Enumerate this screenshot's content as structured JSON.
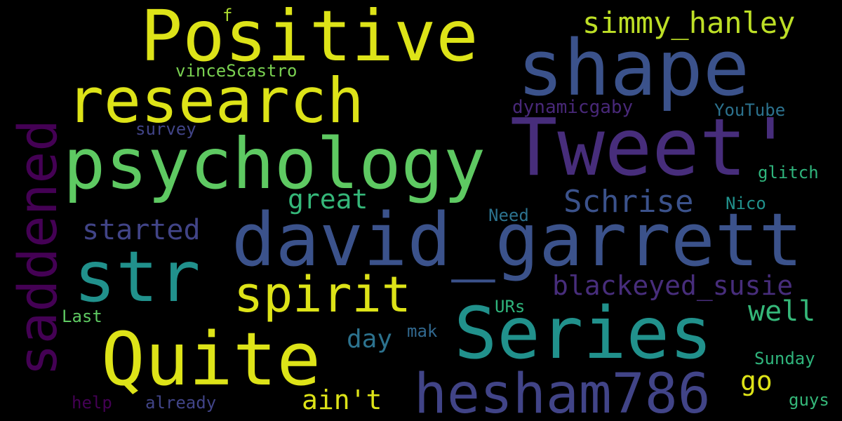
{
  "words": [
    {
      "text": "david_garrett",
      "color": "#3b528b"
    },
    {
      "text": "psychology",
      "color": "#5ec962"
    },
    {
      "text": "Tweet'",
      "color": "#472d7b"
    },
    {
      "text": "Series",
      "color": "#21918c"
    },
    {
      "text": "Positive",
      "color": "#dde318"
    },
    {
      "text": "shape",
      "color": "#3b528b"
    },
    {
      "text": "research",
      "color": "#dde318"
    },
    {
      "text": "saddened",
      "color": "#440154"
    },
    {
      "text": "Quite",
      "color": "#dde318"
    },
    {
      "text": "hesham786",
      "color": "#414487"
    },
    {
      "text": "str",
      "color": "#21918c"
    },
    {
      "text": "spirit",
      "color": "#dde318"
    },
    {
      "text": "simmy_hanley",
      "color": "#bddf26"
    },
    {
      "text": "Schrise",
      "color": "#3b528b"
    },
    {
      "text": "blackeyed_susie",
      "color": "#472d7b"
    },
    {
      "text": "started",
      "color": "#414487"
    },
    {
      "text": "great",
      "color": "#35b779"
    },
    {
      "text": "well",
      "color": "#35b779"
    },
    {
      "text": "ain't",
      "color": "#dde318"
    },
    {
      "text": "go",
      "color": "#dde318"
    },
    {
      "text": "day",
      "color": "#2c728e"
    },
    {
      "text": "dynamicgaby",
      "color": "#482878"
    },
    {
      "text": "vinceScastro",
      "color": "#7ad151"
    },
    {
      "text": "YouTube",
      "color": "#2c728e"
    },
    {
      "text": "survey",
      "color": "#414487"
    },
    {
      "text": "glitch",
      "color": "#2fb47c"
    },
    {
      "text": "Nico",
      "color": "#21918c"
    },
    {
      "text": "Need",
      "color": "#2c728e"
    },
    {
      "text": "URs",
      "color": "#2fb47c"
    },
    {
      "text": "Last",
      "color": "#5ec962"
    },
    {
      "text": "mak",
      "color": "#31688e"
    },
    {
      "text": "Sunday",
      "color": "#2fb47c"
    },
    {
      "text": "guys",
      "color": "#35b779"
    },
    {
      "text": "help",
      "color": "#440154"
    },
    {
      "text": "already",
      "color": "#414487"
    },
    {
      "text": "f",
      "color": "#addc30"
    }
  ]
}
